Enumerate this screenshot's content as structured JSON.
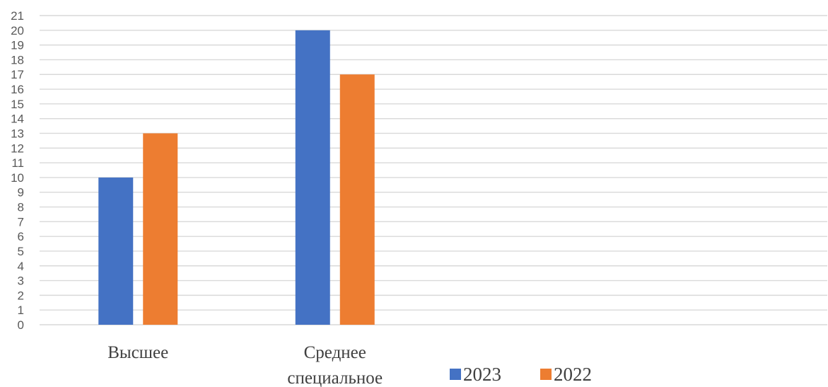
{
  "chart_data": {
    "type": "bar",
    "categories": [
      "Высшее",
      "Среднее\nспециальное",
      "",
      ""
    ],
    "series": [
      {
        "name": "2023",
        "values": [
          10,
          20,
          null,
          null
        ],
        "color": "#4472C4"
      },
      {
        "name": "2022",
        "values": [
          13,
          17,
          null,
          null
        ],
        "color": "#ED7D31"
      }
    ],
    "title": "",
    "xlabel": "",
    "ylabel": "",
    "ylim": [
      0,
      21
    ],
    "ytick_step": 1,
    "grid": true,
    "legend_position": "bottom"
  }
}
